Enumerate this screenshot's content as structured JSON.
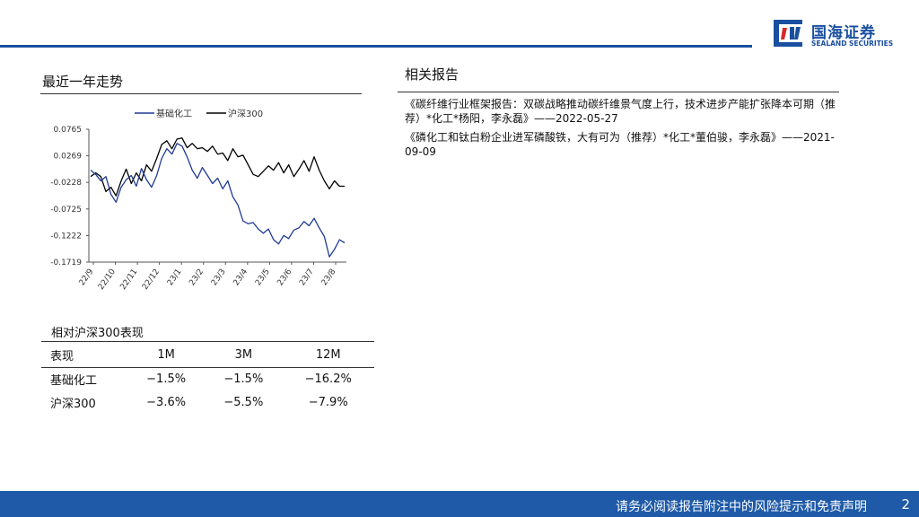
{
  "brand": {
    "name_cn": "国海证券",
    "name_en": "SEALAND SECURITIES",
    "color": "#1a4fa0"
  },
  "left_section": {
    "title": "最近一年走势"
  },
  "right_section": {
    "title": "相关报告",
    "reports": [
      "《碳纤维行业框架报告：双碳战略推动碳纤维景气度上行，技术进步产能扩张降本可期（推荐）*化工*杨阳，李永磊》——2022-05-27",
      "《磷化工和钛白粉企业进军磷酸铁，大有可为（推荐）*化工*董伯骏，李永磊》——2021-09-09"
    ]
  },
  "performance": {
    "title": "相对沪深300表现",
    "headers": [
      "表现",
      "1M",
      "3M",
      "12M"
    ],
    "rows": [
      [
        "基础化工",
        "−1.5%",
        "−1.5%",
        "−16.2%"
      ],
      [
        "沪深300",
        "−3.6%",
        "−5.5%",
        "−7.9%"
      ]
    ]
  },
  "footer": {
    "disclaimer": "请务必阅读报告附注中的风险提示和免责声明",
    "page": "2"
  },
  "chart_data": {
    "type": "line",
    "title": "",
    "xlabel": "",
    "ylabel": "",
    "ylim": [
      -0.1719,
      0.0765
    ],
    "y_ticks": [
      "0.0765",
      "0.0269",
      "-0.0228",
      "-0.0725",
      "-0.1222",
      "-0.1719"
    ],
    "x_ticks": [
      "22/9",
      "22/10",
      "22/11",
      "22/12",
      "23/1",
      "23/2",
      "23/3",
      "23/4",
      "23/5",
      "23/6",
      "23/7",
      "23/8"
    ],
    "grid": false,
    "legend_position": "top",
    "series": [
      {
        "name": "基础化工",
        "color": "#1f3a93",
        "values": [
          0.0,
          -0.008,
          -0.02,
          -0.012,
          -0.045,
          -0.06,
          -0.032,
          -0.018,
          -0.01,
          -0.03,
          0.003,
          -0.018,
          -0.032,
          -0.01,
          0.022,
          0.04,
          0.03,
          0.05,
          0.045,
          0.025,
          0.0,
          -0.015,
          0.005,
          -0.01,
          -0.025,
          -0.015,
          -0.035,
          -0.02,
          -0.05,
          -0.065,
          -0.095,
          -0.1,
          -0.098,
          -0.11,
          -0.118,
          -0.11,
          -0.13,
          -0.138,
          -0.122,
          -0.128,
          -0.112,
          -0.108,
          -0.096,
          -0.104,
          -0.09,
          -0.108,
          -0.124,
          -0.162,
          -0.148,
          -0.13,
          -0.136
        ]
      },
      {
        "name": "沪深300",
        "color": "#000000",
        "values": [
          -0.012,
          -0.005,
          -0.012,
          -0.04,
          -0.032,
          -0.048,
          -0.02,
          0.002,
          -0.025,
          -0.005,
          -0.02,
          0.01,
          -0.002,
          0.022,
          0.048,
          0.055,
          0.04,
          0.058,
          0.06,
          0.042,
          0.05,
          0.04,
          0.042,
          0.035,
          0.045,
          0.03,
          0.032,
          0.018,
          0.04,
          0.025,
          0.028,
          0.01,
          -0.008,
          -0.012,
          -0.002,
          0.008,
          0.0,
          0.014,
          -0.005,
          0.01,
          -0.012,
          0.002,
          0.018,
          -0.002,
          0.025,
          0.0,
          -0.02,
          -0.035,
          -0.02,
          -0.03,
          -0.03
        ]
      }
    ]
  }
}
